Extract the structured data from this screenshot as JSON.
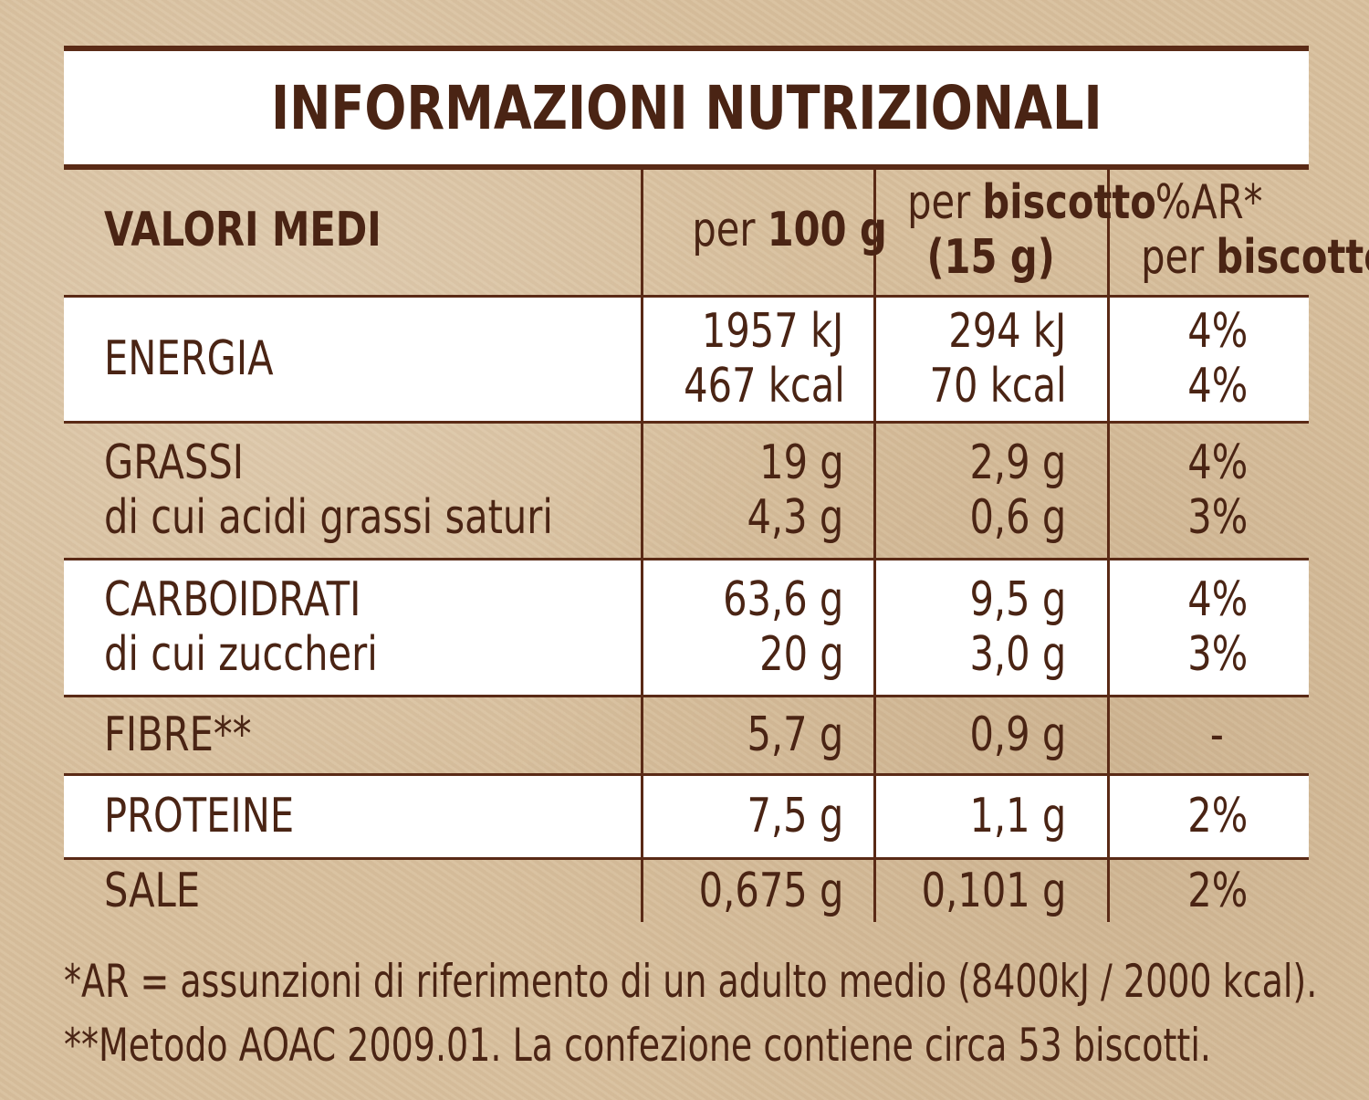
{
  "title": "INFORMAZIONI NUTRIZIONALI",
  "header": {
    "label": "VALORI MEDI",
    "col2_pre": "per",
    "col2_bold": "100 g",
    "col3_pre": "per",
    "col3_bold": "biscotto",
    "col3_line2": "(15 g)",
    "col4_line1": "%AR*",
    "col4_pre": "per",
    "col4_bold": "biscotto"
  },
  "rows": [
    {
      "lines": [
        "ENERGIA"
      ],
      "per100": [
        "1957 kJ",
        "467 kcal"
      ],
      "perBiscotto": [
        "294 kJ",
        "70 kcal"
      ],
      "ar": [
        "4%",
        "4%"
      ]
    },
    {
      "lines": [
        "GRASSI",
        "di cui acidi grassi saturi"
      ],
      "per100": [
        "19 g",
        "4,3 g"
      ],
      "perBiscotto": [
        "2,9 g",
        "0,6 g"
      ],
      "ar": [
        "4%",
        "3%"
      ]
    },
    {
      "lines": [
        "CARBOIDRATI",
        "di cui zuccheri"
      ],
      "per100": [
        "63,6 g",
        "20 g"
      ],
      "perBiscotto": [
        "9,5 g",
        "3,0 g"
      ],
      "ar": [
        "4%",
        "3%"
      ]
    },
    {
      "lines": [
        "FIBRE**"
      ],
      "per100": [
        "5,7 g"
      ],
      "perBiscotto": [
        "0,9 g"
      ],
      "ar": [
        "-"
      ]
    },
    {
      "lines": [
        "PROTEINE"
      ],
      "per100": [
        "7,5 g"
      ],
      "perBiscotto": [
        "1,1 g"
      ],
      "ar": [
        "2%"
      ]
    },
    {
      "lines": [
        "SALE"
      ],
      "per100": [
        "0,675 g"
      ],
      "perBiscotto": [
        "0,101 g"
      ],
      "ar": [
        "2%"
      ]
    }
  ],
  "footnotes": [
    "*AR = assunzioni di riferimento di un adulto medio (8400kJ / 2000 kcal).",
    "**Metodo AOAC 2009.01. La confezione contiene circa 53 biscotti."
  ],
  "colors": {
    "text": "#4a2414",
    "rule": "#5a2a16",
    "band": "#ffffff",
    "background": "#d8bf9c"
  }
}
